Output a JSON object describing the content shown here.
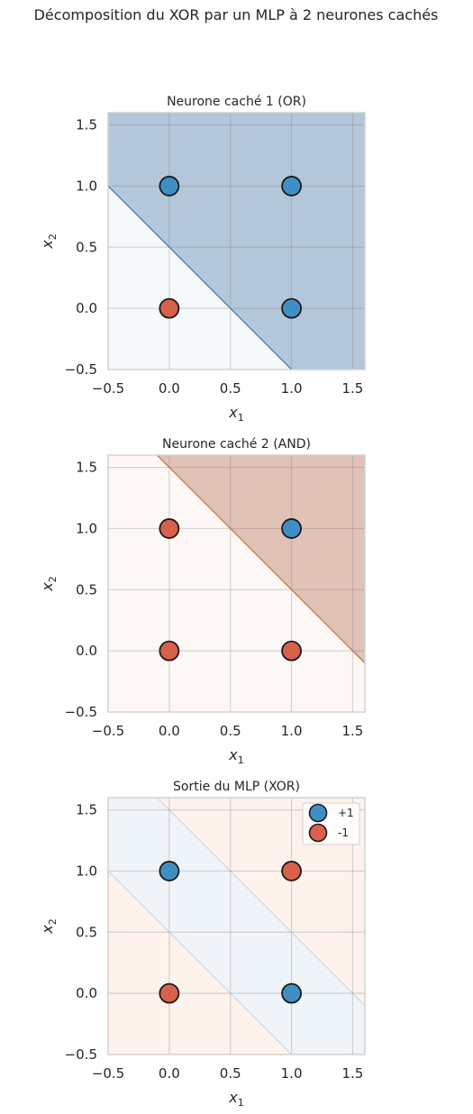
{
  "figure": {
    "title": "Décomposition du XOR par un MLP à 2 neurones cachés"
  },
  "chart_data": [
    {
      "type": "scatter",
      "title": "Neurone caché 1 (OR)",
      "xlabel": "x1",
      "ylabel": "x2",
      "xlim": [
        -0.5,
        1.6
      ],
      "ylim": [
        -0.5,
        1.6
      ],
      "xticks": [
        -0.5,
        0.0,
        0.5,
        1.0,
        1.5
      ],
      "yticks": [
        -0.5,
        0.0,
        0.5,
        1.0,
        1.5
      ],
      "grid": true,
      "decision_boundary": {
        "equation": "x1 + x2 = 0.5",
        "positive_side": "above"
      },
      "colors": {
        "positive_region": "#b3c6da",
        "negative_region": "#f6f9fc",
        "line": "#1f5fa0"
      },
      "points": [
        {
          "x": 0,
          "y": 0,
          "class": "-1",
          "color": "#d9604a"
        },
        {
          "x": 0,
          "y": 1,
          "class": "+1",
          "color": "#3f8fc4"
        },
        {
          "x": 1,
          "y": 0,
          "class": "+1",
          "color": "#3f8fc4"
        },
        {
          "x": 1,
          "y": 1,
          "class": "+1",
          "color": "#3f8fc4"
        }
      ]
    },
    {
      "type": "scatter",
      "title": "Neurone caché 2 (AND)",
      "xlabel": "x1",
      "ylabel": "x2",
      "xlim": [
        -0.5,
        1.6
      ],
      "ylim": [
        -0.5,
        1.6
      ],
      "xticks": [
        -0.5,
        0.0,
        0.5,
        1.0,
        1.5
      ],
      "yticks": [
        -0.5,
        0.0,
        0.5,
        1.0,
        1.5
      ],
      "grid": true,
      "decision_boundary": {
        "equation": "x1 + x2 = 1.5",
        "positive_side": "above"
      },
      "colors": {
        "positive_region": "#e0c2b6",
        "negative_region": "#fdf8f5",
        "line": "#b8591f"
      },
      "points": [
        {
          "x": 0,
          "y": 0,
          "class": "-1",
          "color": "#d9604a"
        },
        {
          "x": 0,
          "y": 1,
          "class": "-1",
          "color": "#d9604a"
        },
        {
          "x": 1,
          "y": 0,
          "class": "-1",
          "color": "#d9604a"
        },
        {
          "x": 1,
          "y": 1,
          "class": "+1",
          "color": "#3f8fc4"
        }
      ]
    },
    {
      "type": "scatter",
      "title": "Sortie du MLP (XOR)",
      "xlabel": "x1",
      "ylabel": "x2",
      "xlim": [
        -0.5,
        1.6
      ],
      "ylim": [
        -0.5,
        1.6
      ],
      "xticks": [
        -0.5,
        0.0,
        0.5,
        1.0,
        1.5
      ],
      "yticks": [
        -0.5,
        0.0,
        0.5,
        1.0,
        1.5
      ],
      "grid": true,
      "decision_boundary": {
        "equation": "0.5 < x1 + x2 < 1.5",
        "positive_side": "band"
      },
      "colors": {
        "positive_region": "#eff4f9",
        "negative_region": "#fdf2ec",
        "line": "#c9d3dc"
      },
      "legend": {
        "position": "upper right",
        "entries": [
          {
            "label": "+1",
            "color": "#3f8fc4"
          },
          {
            "label": "-1",
            "color": "#d9604a"
          }
        ]
      },
      "points": [
        {
          "x": 0,
          "y": 0,
          "class": "-1",
          "color": "#d9604a"
        },
        {
          "x": 0,
          "y": 1,
          "class": "+1",
          "color": "#3f8fc4"
        },
        {
          "x": 1,
          "y": 0,
          "class": "+1",
          "color": "#3f8fc4"
        },
        {
          "x": 1,
          "y": 1,
          "class": "-1",
          "color": "#d9604a"
        }
      ]
    }
  ]
}
